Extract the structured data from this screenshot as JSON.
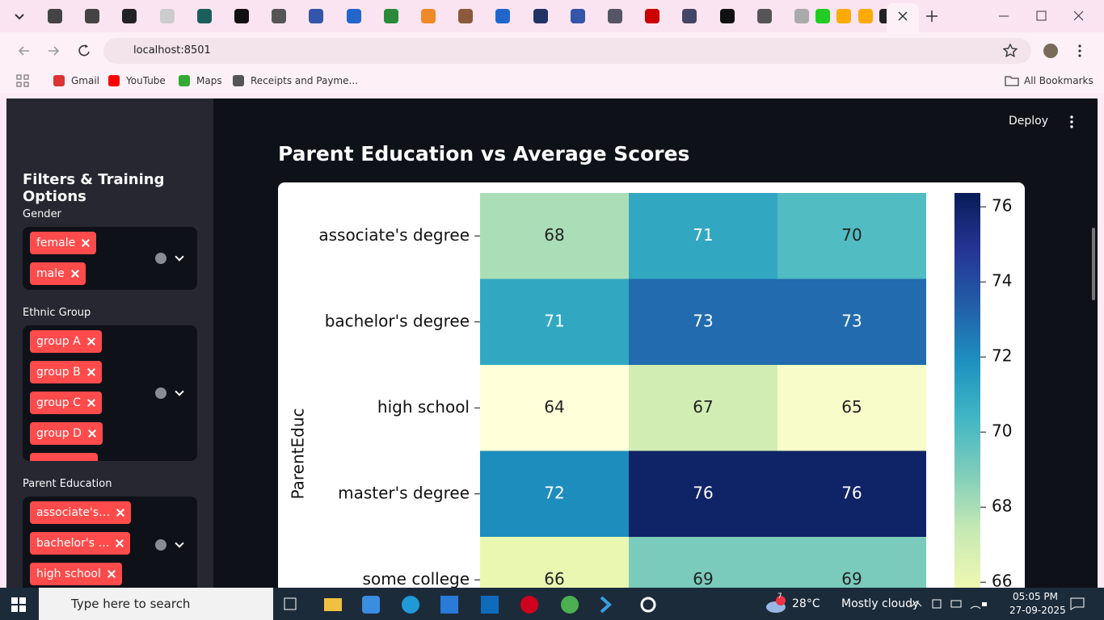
{
  "browser": {
    "address": "localhost:8501",
    "bookmarks": [
      "Gmail",
      "YouTube",
      "Maps",
      "Receipts and Payme..."
    ],
    "all_bookmarks": "All Bookmarks"
  },
  "app": {
    "deploy": "Deploy",
    "sidebar": {
      "title": "Filters & Training Options",
      "filters": [
        {
          "label": "Gender",
          "tags": [
            "female",
            "male"
          ]
        },
        {
          "label": "Ethnic Group",
          "tags": [
            "group A",
            "group B",
            "group C",
            "group D"
          ]
        },
        {
          "label": "Parent Education",
          "tags": [
            "associate's…",
            "bachelor's …",
            "high school"
          ]
        }
      ]
    },
    "heading": "Parent Education vs Average Scores"
  },
  "chart_data": {
    "type": "heatmap",
    "ylabel": "ParentEduc",
    "rows": [
      "associate's degree",
      "bachelor's degree",
      "high school",
      "master's degree",
      "some college"
    ],
    "values": [
      [
        68,
        71,
        70
      ],
      [
        71,
        73,
        73
      ],
      [
        64,
        67,
        65
      ],
      [
        72,
        76,
        76
      ],
      [
        66,
        69,
        69
      ]
    ],
    "colormap": "YlGnBu",
    "clim": [
      64.4,
      76.37
    ],
    "cticks": [
      76,
      74,
      72,
      70,
      68,
      66
    ]
  },
  "taskbar": {
    "search": "Type here to search",
    "weather_badge": "7",
    "temperature": "28°C",
    "weather": "Mostly cloudy",
    "time": "05:05 PM",
    "date": "27-09-2025"
  }
}
